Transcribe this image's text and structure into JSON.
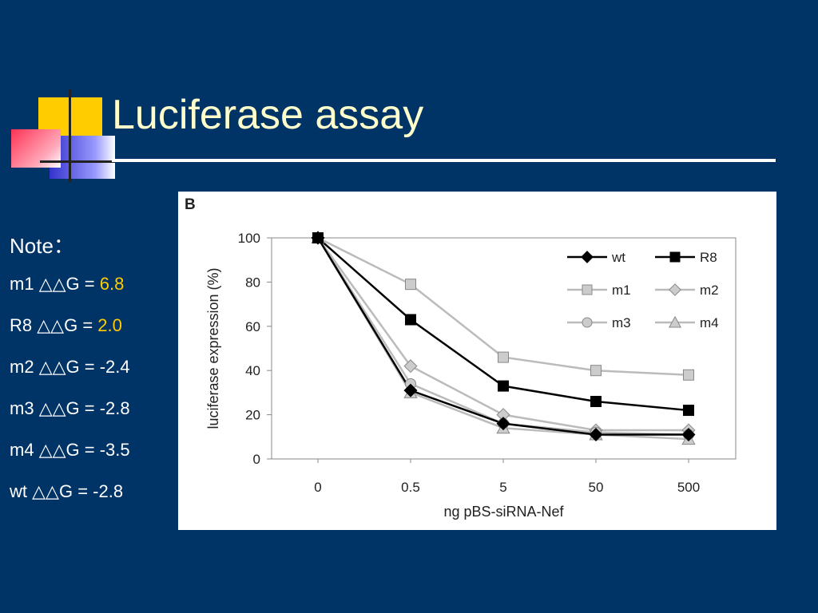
{
  "slide": {
    "title": "Luciferase assay",
    "accent_colors": {
      "background": "#003366",
      "title": "#FFFFCC",
      "highlight": "#FFCC00"
    }
  },
  "notes": {
    "heading": "Note：",
    "items": [
      {
        "name": "m1",
        "symbol": "△△G",
        "eq": " = ",
        "value": "6.8",
        "highlight": true
      },
      {
        "name": "R8",
        "symbol": "△△G",
        "eq": " = ",
        "value": "2.0",
        "highlight": true
      },
      {
        "name": "m2",
        "symbol": "△△G",
        "eq": " = ",
        "value": "-2.4",
        "highlight": false
      },
      {
        "name": "m3",
        "symbol": "△△G",
        "eq": " = ",
        "value": "-2.8",
        "highlight": false
      },
      {
        "name": "m4",
        "symbol": "△△G",
        "eq": " = ",
        "value": "-3.5",
        "highlight": false
      },
      {
        "name": "wt",
        "symbol": "△△G",
        "eq": " = ",
        "value": "-2.8",
        "highlight": false
      }
    ]
  },
  "chart_data": {
    "type": "line",
    "panel_label": "B",
    "categories": [
      "0",
      "0.5",
      "5",
      "50",
      "500"
    ],
    "xlabel": "ng pBS-siRNA-Nef",
    "ylabel": "luciferase expression (%)",
    "ylim": [
      0,
      100
    ],
    "yticks": [
      0,
      20,
      40,
      60,
      80,
      100
    ],
    "grid": false,
    "legend_position": "top-right",
    "series": [
      {
        "name": "wt",
        "values": [
          100,
          31,
          16,
          11,
          11
        ],
        "marker": "diamond",
        "line_color": "#000000",
        "fill": "#000000",
        "width": 2.5
      },
      {
        "name": "R8",
        "values": [
          100,
          63,
          33,
          26,
          22
        ],
        "marker": "square",
        "line_color": "#000000",
        "fill": "#000000",
        "width": 2.5
      },
      {
        "name": "m1",
        "values": [
          100,
          79,
          46,
          40,
          38
        ],
        "marker": "square",
        "line_color": "#BBBBBB",
        "fill": "#CCCCCC",
        "width": 2.5
      },
      {
        "name": "m2",
        "values": [
          100,
          42,
          20,
          13,
          13
        ],
        "marker": "diamond",
        "line_color": "#BBBBBB",
        "fill": "#CCCCCC",
        "width": 2.5
      },
      {
        "name": "m3",
        "values": [
          100,
          34,
          16,
          12,
          11
        ],
        "marker": "circle",
        "line_color": "#BBBBBB",
        "fill": "#CCCCCC",
        "width": 2.5
      },
      {
        "name": "m4",
        "values": [
          100,
          30,
          14,
          11,
          9
        ],
        "marker": "triangle",
        "line_color": "#BBBBBB",
        "fill": "#CCCCCC",
        "width": 2.5
      }
    ]
  }
}
